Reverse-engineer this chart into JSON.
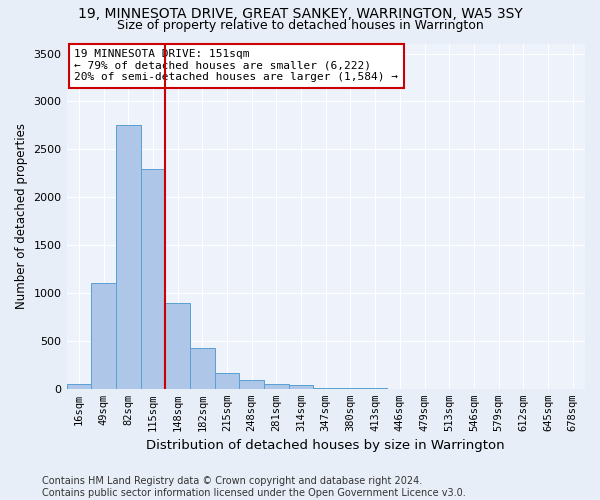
{
  "title": "19, MINNESOTA DRIVE, GREAT SANKEY, WARRINGTON, WA5 3SY",
  "subtitle": "Size of property relative to detached houses in Warrington",
  "xlabel": "Distribution of detached houses by size in Warrington",
  "ylabel": "Number of detached properties",
  "categories": [
    "16sqm",
    "49sqm",
    "82sqm",
    "115sqm",
    "148sqm",
    "182sqm",
    "215sqm",
    "248sqm",
    "281sqm",
    "314sqm",
    "347sqm",
    "380sqm",
    "413sqm",
    "446sqm",
    "479sqm",
    "513sqm",
    "546sqm",
    "579sqm",
    "612sqm",
    "645sqm",
    "678sqm"
  ],
  "values": [
    50,
    1100,
    2750,
    2300,
    900,
    430,
    170,
    90,
    55,
    40,
    10,
    5,
    5,
    2,
    2,
    1,
    0,
    0,
    0,
    0,
    0
  ],
  "bar_color": "#aec6e8",
  "bar_edge_color": "#5a9fd4",
  "vline_x": 3.5,
  "vline_color": "#cc0000",
  "annotation_line1": "19 MINNESOTA DRIVE: 151sqm",
  "annotation_line2": "← 79% of detached houses are smaller (6,222)",
  "annotation_line3": "20% of semi-detached houses are larger (1,584) →",
  "annotation_box_color": "#ffffff",
  "annotation_box_edge_color": "#cc0000",
  "ylim": [
    0,
    3600
  ],
  "yticks": [
    0,
    500,
    1000,
    1500,
    2000,
    2500,
    3000,
    3500
  ],
  "bg_color": "#e8eef8",
  "plot_bg_color": "#eef2fb",
  "footer": "Contains HM Land Registry data © Crown copyright and database right 2024.\nContains public sector information licensed under the Open Government Licence v3.0.",
  "title_fontsize": 10,
  "subtitle_fontsize": 9,
  "xlabel_fontsize": 9.5,
  "ylabel_fontsize": 8.5,
  "annotation_fontsize": 8,
  "footer_fontsize": 7
}
